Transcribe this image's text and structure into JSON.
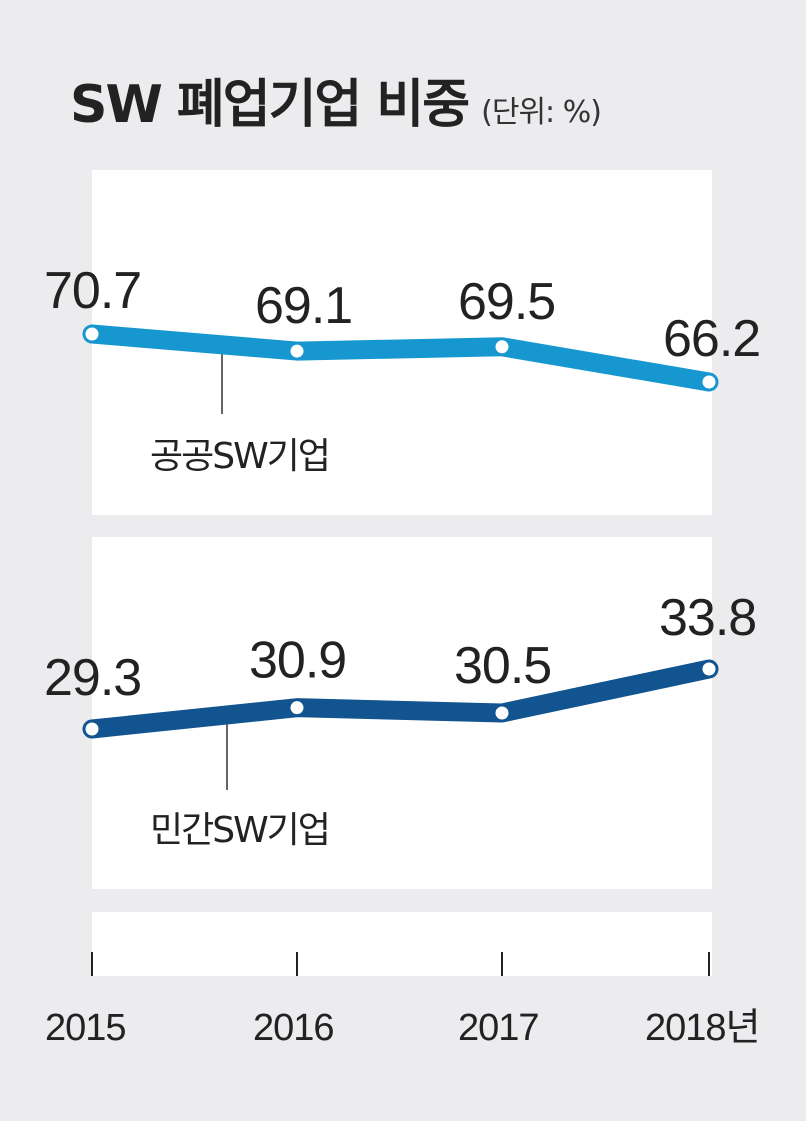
{
  "chart_data": {
    "type": "line",
    "title": "SW 폐업기업 비중",
    "unit": "(단위: %)",
    "categories": [
      "2015",
      "2016",
      "2017",
      "2018년"
    ],
    "series": [
      {
        "name": "공공SW기업",
        "values": [
          70.7,
          69.1,
          69.5,
          66.2
        ],
        "color": "#1797cf"
      },
      {
        "name": "민간SW기업",
        "values": [
          29.3,
          30.9,
          30.5,
          33.8
        ],
        "color": "#11548f"
      }
    ],
    "grid": false
  }
}
